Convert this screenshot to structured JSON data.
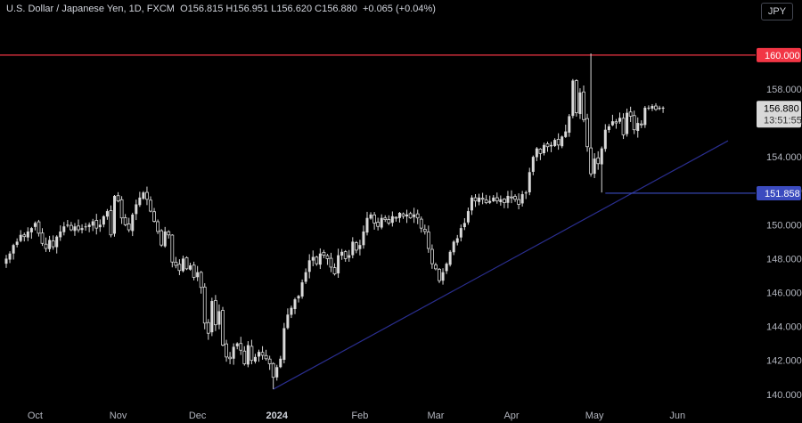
{
  "header": {
    "symbol": "U.S. Dollar / Japanese Yen, 1D, FXCM",
    "ohlc": "O156.815  H156.951  L156.620  C156.880",
    "change": "+0.065 (+0.04%)"
  },
  "currency_button": "JPY",
  "colors": {
    "background": "#000000",
    "candle": "#d9d9d9",
    "resistance": "#f23645",
    "trendline": "#2a2e8f",
    "support": "#3b4bbf",
    "price_tag_bg": "#d9d9d9"
  },
  "chart_data": {
    "type": "candlestick",
    "ylim": [
      139.2,
      162.2
    ],
    "y_ticks": [
      "140.000",
      "142.000",
      "144.000",
      "146.000",
      "148.000",
      "150.000",
      "152.000",
      "154.000",
      "156.000",
      "158.000"
    ],
    "x_labels": [
      {
        "label": "Oct",
        "index": 8
      },
      {
        "label": "Nov",
        "index": 31
      },
      {
        "label": "Dec",
        "index": 53
      },
      {
        "label": "2024",
        "index": 75,
        "bold": true
      },
      {
        "label": "Feb",
        "index": 98
      },
      {
        "label": "Mar",
        "index": 119
      },
      {
        "label": "Apr",
        "index": 140
      },
      {
        "label": "May",
        "index": 163
      },
      {
        "label": "Jun",
        "index": 186
      }
    ],
    "resistance": {
      "value": 160.0,
      "label": "160.000"
    },
    "support": {
      "value": 151.858,
      "label": "151.858",
      "start_index": 166
    },
    "trendline": {
      "from": [
        74,
        140.3
      ],
      "to": [
        200,
        154.95
      ]
    },
    "current": {
      "price": "156.880",
      "countdown": "13:51:55",
      "value": 156.88
    },
    "closes": [
      148.0,
      148.3,
      148.8,
      149.0,
      149.4,
      149.3,
      149.6,
      149.8,
      150.1,
      149.5,
      148.9,
      148.6,
      149.1,
      148.7,
      149.3,
      149.6,
      149.9,
      150.0,
      149.7,
      149.9,
      149.7,
      149.8,
      149.9,
      150.0,
      150.2,
      149.8,
      150.0,
      150.5,
      150.8,
      149.4,
      151.7,
      151.4,
      150.4,
      150.0,
      149.7,
      150.6,
      151.2,
      151.6,
      151.9,
      151.5,
      150.8,
      150.2,
      149.6,
      148.8,
      149.6,
      149.4,
      147.8,
      147.6,
      147.3,
      148.0,
      147.4,
      147.6,
      146.9,
      147.2,
      146.3,
      144.2,
      143.6,
      145.5,
      144.1,
      144.9,
      142.9,
      142.2,
      142.1,
      142.8,
      143.0,
      142.6,
      141.8,
      142.9,
      142.0,
      142.2,
      142.5,
      142.3,
      142.1,
      141.8,
      141.0,
      141.6,
      142.1,
      143.9,
      144.7,
      145.1,
      145.6,
      145.8,
      146.6,
      147.2,
      147.9,
      148.1,
      147.7,
      148.3,
      148.2,
      148.0,
      147.5,
      147.1,
      148.2,
      148.4,
      148.0,
      148.2,
      149.0,
      148.5,
      148.8,
      149.6,
      150.4,
      150.6,
      150.1,
      149.9,
      150.4,
      150.3,
      150.1,
      150.5,
      150.4,
      150.7,
      150.5,
      150.6,
      150.4,
      150.6,
      150.4,
      149.8,
      149.6,
      148.6,
      147.7,
      147.4,
      146.7,
      147.2,
      147.7,
      148.4,
      149.0,
      149.2,
      149.8,
      150.1,
      150.8,
      151.6,
      151.4,
      151.6,
      151.5,
      151.3,
      151.4,
      151.6,
      151.4,
      151.5,
      151.3,
      151.7,
      151.6,
      151.5,
      151.2,
      151.8,
      151.9,
      153.1,
      154.0,
      154.5,
      154.2,
      154.7,
      154.6,
      154.7,
      155.0,
      154.7,
      155.2,
      155.5,
      156.4,
      158.5,
      156.6,
      157.8,
      156.2,
      154.6,
      153.0,
      153.9,
      153.6,
      154.5,
      155.6,
      155.8,
      156.1,
      156.0,
      156.3,
      155.3,
      156.6,
      156.4,
      155.6,
      156.0,
      155.9,
      156.9,
      156.9,
      157.0,
      156.8,
      156.9,
      156.9
    ]
  }
}
